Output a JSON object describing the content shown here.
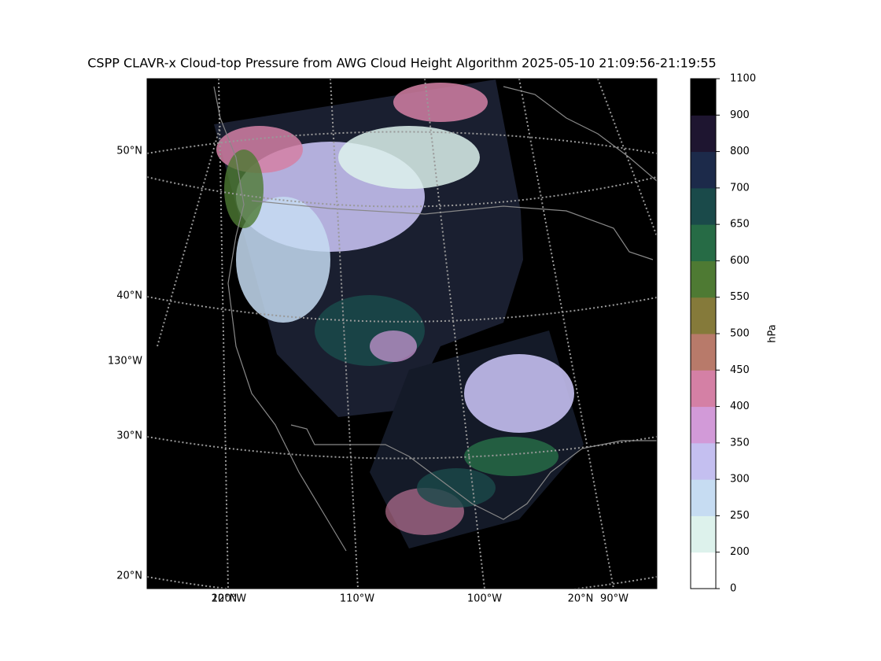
{
  "title": "CSPP CLAVR-x Cloud-top Pressure from AWG Cloud Height Algorithm 2025-05-10 21:09:56-21:19:55",
  "map": {
    "left_labels": [
      "50°N",
      "40°N",
      "130°W",
      "30°N",
      "20°N"
    ],
    "bottom_labels": [
      "20°N",
      "120°W",
      "110°W",
      "100°W",
      "20°N",
      "90°W"
    ]
  },
  "colorbar": {
    "label": "hPa",
    "ticks": [
      0,
      200,
      250,
      300,
      350,
      400,
      450,
      500,
      550,
      600,
      650,
      700,
      800,
      900,
      1100
    ],
    "colors": [
      "#ffffff",
      "#ddf2ec",
      "#c6dcf2",
      "#c4bff0",
      "#d29ad8",
      "#d480a5",
      "#b87a6a",
      "#857a3a",
      "#4e7a33",
      "#266b45",
      "#1a4a4a",
      "#1c2a4a",
      "#1e1530",
      "#000000"
    ]
  }
}
